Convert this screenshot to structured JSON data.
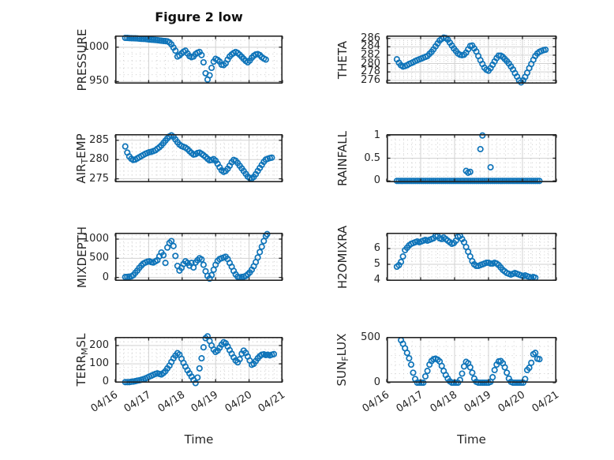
{
  "title": "Figure 2 low",
  "xlabel": "Time",
  "x_tick_labels": [
    "04/16",
    "04/17",
    "04/18",
    "04/19",
    "04/20",
    "04/21"
  ],
  "colors": {
    "marker": "#0f74b9",
    "axis": "#242424",
    "grid_major": "#d2d2d2",
    "grid_minor": "#c8c8c8",
    "text": "#252525"
  },
  "x_days": [
    0.3,
    0.36,
    0.42,
    0.48,
    0.54,
    0.6,
    0.66,
    0.72,
    0.78,
    0.84,
    0.9,
    0.96,
    1.02,
    1.08,
    1.14,
    1.2,
    1.26,
    1.32,
    1.38,
    1.44,
    1.5,
    1.56,
    1.62,
    1.68,
    1.74,
    1.8,
    1.86,
    1.92,
    1.98,
    2.04,
    2.1,
    2.16,
    2.22,
    2.28,
    2.34,
    2.4,
    2.46,
    2.52,
    2.58,
    2.64,
    2.7,
    2.76,
    2.82,
    2.88,
    2.94,
    3.0,
    3.06,
    3.12,
    3.18,
    3.24,
    3.3,
    3.36,
    3.42,
    3.48,
    3.54,
    3.6,
    3.66,
    3.72,
    3.78,
    3.84,
    3.9,
    3.96,
    4.02,
    4.08,
    4.14,
    4.2,
    4.26,
    4.32,
    4.38,
    4.44,
    4.5
  ],
  "chart_data": [
    {
      "id": "pressure",
      "type": "scatter",
      "row": 0,
      "col": 0,
      "ylabel_parts": [
        {
          "text": "PRESSURE",
          "sub": false
        }
      ],
      "yticks": [
        950,
        1000
      ],
      "ylim": [
        947,
        1017
      ],
      "minor_y_step": 10,
      "y": [
        1013.6,
        1013.4,
        1013.2,
        1013.1,
        1013.0,
        1012.9,
        1012.7,
        1012.4,
        1012.2,
        1012.1,
        1012.0,
        1011.6,
        1011.2,
        1010.9,
        1010.7,
        1010.5,
        1010.2,
        1009.8,
        1009.4,
        1009.1,
        1009.0,
        1008.5,
        1007.0,
        1004.0,
        999.5,
        995.0,
        986.5,
        988.0,
        991.0,
        993.5,
        995.0,
        991.0,
        987.0,
        985.5,
        986.5,
        990.0,
        992.0,
        993.0,
        988.5,
        978.0,
        962.0,
        953.0,
        959.0,
        970.0,
        979.0,
        983.0,
        981.5,
        979.0,
        974.5,
        974.0,
        976.5,
        982.0,
        986.5,
        989.5,
        991.5,
        993.0,
        991.5,
        989.0,
        986.0,
        983.0,
        980.0,
        978.0,
        980.5,
        984.5,
        987.5,
        989.5,
        990.0,
        988.5,
        985.5,
        983.5,
        982.0
      ]
    },
    {
      "id": "theta",
      "type": "scatter",
      "row": 0,
      "col": 1,
      "ylabel_parts": [
        {
          "text": "THETA",
          "sub": false
        }
      ],
      "yticks": [
        276,
        278,
        280,
        282,
        284,
        286
      ],
      "ylim": [
        275.2,
        286.7
      ],
      "minor_y_step": 0.5,
      "y": [
        281.0,
        280.2,
        279.6,
        279.3,
        279.4,
        279.6,
        279.9,
        280.1,
        280.3,
        280.6,
        280.8,
        281.0,
        281.2,
        281.4,
        281.6,
        281.8,
        282.3,
        282.8,
        283.4,
        284.1,
        284.8,
        285.5,
        285.9,
        286.2,
        286.1,
        285.7,
        285.0,
        284.3,
        283.6,
        283.0,
        282.4,
        282.1,
        282.0,
        282.1,
        282.6,
        283.4,
        284.2,
        284.3,
        283.6,
        282.9,
        281.8,
        280.8,
        279.9,
        279.0,
        278.5,
        278.3,
        278.9,
        279.7,
        280.5,
        281.3,
        281.9,
        281.9,
        281.6,
        281.1,
        280.6,
        280.0,
        279.3,
        278.6,
        277.7,
        276.9,
        276.0,
        275.5,
        276.0,
        276.8,
        277.8,
        278.9,
        279.9,
        280.9,
        281.8,
        282.4,
        282.8
      ],
      "x_extra": [
        4.56,
        4.62,
        4.68
      ],
      "y_extra": [
        283.0,
        283.2,
        283.3
      ]
    },
    {
      "id": "air-temp",
      "type": "scatter",
      "row": 1,
      "col": 0,
      "ylabel_parts": [
        {
          "text": "AIR",
          "sub": false
        },
        {
          "text": "T",
          "sub": true
        },
        {
          "text": "EMP",
          "sub": false
        }
      ],
      "yticks": [
        275,
        280,
        285
      ],
      "ylim": [
        274.1,
        286.6
      ],
      "minor_y_step": 1,
      "y": [
        283.4,
        281.8,
        280.8,
        280.2,
        279.9,
        280.0,
        280.3,
        280.6,
        280.9,
        281.2,
        281.5,
        281.7,
        281.9,
        282.0,
        282.2,
        282.4,
        282.8,
        283.2,
        283.7,
        284.3,
        284.9,
        285.5,
        286.0,
        286.3,
        285.9,
        285.2,
        284.5,
        283.9,
        283.5,
        283.3,
        283.1,
        282.7,
        282.2,
        281.7,
        281.3,
        281.4,
        281.7,
        281.8,
        281.5,
        281.1,
        280.7,
        280.2,
        279.8,
        279.9,
        280.1,
        279.7,
        278.9,
        278.0,
        277.2,
        276.8,
        277.0,
        277.6,
        278.4,
        279.3,
        279.9,
        279.7,
        279.1,
        278.4,
        277.7,
        277.0,
        276.3,
        275.6,
        275.2,
        275.1,
        275.5,
        276.2,
        277.0,
        277.8,
        278.6,
        279.4,
        280.0
      ],
      "x_extra": [
        4.56,
        4.62,
        4.68
      ],
      "y_extra": [
        280.2,
        280.4,
        280.5
      ]
    },
    {
      "id": "rainfall",
      "type": "scatter",
      "row": 1,
      "col": 1,
      "ylabel_parts": [
        {
          "text": "RAINFALL",
          "sub": false
        }
      ],
      "yticks": [
        0,
        0.5,
        1
      ],
      "ylim": [
        -0.03,
        1.03
      ],
      "minor_y_step": 0.1,
      "y": [
        0,
        0,
        0,
        0,
        0,
        0,
        0,
        0,
        0,
        0,
        0,
        0,
        0,
        0,
        0,
        0,
        0,
        0,
        0,
        0,
        0,
        0,
        0,
        0,
        0,
        0,
        0,
        0,
        0,
        0,
        0,
        0,
        0,
        0,
        0,
        0,
        0,
        0,
        0,
        0,
        0,
        0,
        0,
        0,
        0,
        0,
        0,
        0,
        0,
        0,
        0,
        0,
        0,
        0,
        0,
        0,
        0,
        0,
        0,
        0,
        0,
        0,
        0,
        0,
        0,
        0,
        0,
        0,
        0,
        0,
        0
      ],
      "x_extra": [
        2.34,
        2.4,
        2.46,
        2.76,
        2.82,
        3.06
      ],
      "y_extra": [
        0.22,
        0.18,
        0.2,
        0.7,
        1.0,
        0.3
      ]
    },
    {
      "id": "mixdepth",
      "type": "scatter",
      "row": 2,
      "col": 0,
      "ylabel_parts": [
        {
          "text": "MIXDEPTH",
          "sub": false
        }
      ],
      "yticks": [
        0,
        500,
        1000
      ],
      "ylim": [
        -90,
        1165
      ],
      "minor_y_step": 100,
      "y": [
        10,
        15,
        20,
        30,
        60,
        120,
        180,
        250,
        310,
        360,
        390,
        410,
        420,
        400,
        390,
        420,
        450,
        550,
        650,
        580,
        380,
        780,
        900,
        950,
        820,
        560,
        300,
        180,
        250,
        350,
        420,
        380,
        310,
        380,
        260,
        390,
        450,
        500,
        470,
        330,
        160,
        40,
        -30,
        60,
        200,
        330,
        430,
        480,
        500,
        520,
        540,
        480,
        380,
        280,
        170,
        80,
        20,
        0,
        10,
        20,
        40,
        80,
        130,
        200,
        290,
        400,
        520,
        660,
        800,
        950,
        1080
      ],
      "x_extra": [
        4.54
      ],
      "y_extra": [
        1130
      ]
    },
    {
      "id": "h2omixra",
      "type": "scatter",
      "row": 2,
      "col": 1,
      "ylabel_parts": [
        {
          "text": "H2OMIXRA",
          "sub": false
        }
      ],
      "yticks": [
        4,
        5,
        6
      ],
      "ylim": [
        3.95,
        7.0
      ],
      "minor_y_step": 0.2,
      "y": [
        4.85,
        4.95,
        5.15,
        5.5,
        5.9,
        6.05,
        6.2,
        6.3,
        6.35,
        6.4,
        6.45,
        6.4,
        6.45,
        6.5,
        6.55,
        6.5,
        6.55,
        6.6,
        6.65,
        6.8,
        6.8,
        6.65,
        6.6,
        6.7,
        6.6,
        6.5,
        6.4,
        6.3,
        6.35,
        6.5,
        6.75,
        6.8,
        6.6,
        6.4,
        6.1,
        5.8,
        5.5,
        5.2,
        5.0,
        4.9,
        4.9,
        4.95,
        5.0,
        5.05,
        5.1,
        5.1,
        5.05,
        5.05,
        5.1,
        5.05,
        4.95,
        4.8,
        4.65,
        4.55,
        4.45,
        4.4,
        4.35,
        4.4,
        4.45,
        4.4,
        4.35,
        4.3,
        4.25,
        4.3,
        4.25,
        4.2,
        4.15,
        4.2,
        4.15,
        null,
        null
      ]
    },
    {
      "id": "terr-msl",
      "type": "scatter",
      "row": 3,
      "col": 0,
      "ylabel_parts": [
        {
          "text": "TERR",
          "sub": false
        },
        {
          "text": "M",
          "sub": true
        },
        {
          "text": "SL",
          "sub": false
        }
      ],
      "yticks": [
        0,
        100,
        200
      ],
      "ylim": [
        -3,
        247
      ],
      "minor_y_step": 20,
      "y": [
        0,
        0,
        0,
        2,
        3,
        5,
        8,
        10,
        13,
        16,
        20,
        25,
        30,
        35,
        40,
        45,
        48,
        45,
        42,
        50,
        60,
        75,
        90,
        110,
        130,
        145,
        158,
        150,
        128,
        105,
        85,
        65,
        48,
        30,
        12,
        -5,
        25,
        75,
        130,
        190,
        240,
        250,
        225,
        200,
        178,
        165,
        172,
        188,
        205,
        218,
        212,
        195,
        175,
        155,
        135,
        118,
        108,
        125,
        155,
        172,
        160,
        140,
        118,
        95,
        100,
        115,
        130,
        142,
        150,
        152,
        148
      ],
      "x_extra": [
        4.56,
        4.62,
        4.68,
        4.74
      ],
      "y_extra": [
        150,
        146,
        150,
        153
      ]
    },
    {
      "id": "sun-flux",
      "type": "scatter",
      "row": 3,
      "col": 1,
      "ylabel_parts": [
        {
          "text": "SUN",
          "sub": false
        },
        {
          "text": "F",
          "sub": true
        },
        {
          "text": "LUX",
          "sub": false
        }
      ],
      "yticks": [
        0,
        500
      ],
      "ylim": [
        0,
        506
      ],
      "minor_y_step": 100,
      "y": [
        null,
        null,
        470,
        430,
        380,
        330,
        270,
        200,
        110,
        40,
        0,
        0,
        0,
        0,
        70,
        130,
        200,
        240,
        260,
        265,
        255,
        235,
        185,
        130,
        85,
        45,
        15,
        0,
        0,
        0,
        0,
        30,
        100,
        180,
        230,
        215,
        170,
        110,
        45,
        10,
        0,
        0,
        0,
        0,
        0,
        0,
        10,
        60,
        140,
        200,
        235,
        240,
        215,
        170,
        110,
        45,
        10,
        0,
        0,
        0,
        0,
        0,
        0,
        40,
        140,
        165,
        220,
        315,
        330,
        265,
        260
      ]
    }
  ]
}
